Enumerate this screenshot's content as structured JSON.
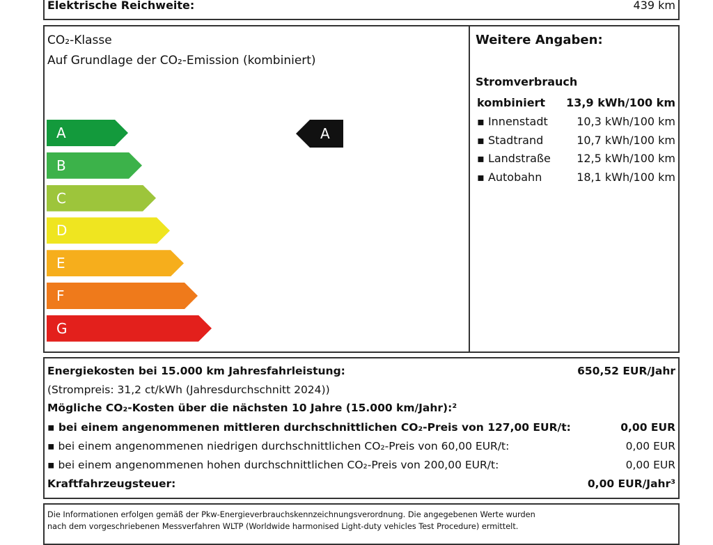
{
  "top": {
    "label": "Elektrische Reichweite:",
    "value": "439 km"
  },
  "co2": {
    "title": "CO₂-Klasse",
    "subtitle": "Auf Grundlage der CO₂-Emission (kombiniert)",
    "classes": [
      "A",
      "B",
      "C",
      "D",
      "E",
      "F",
      "G"
    ],
    "current": "A"
  },
  "weitere": {
    "title": "Weitere Angaben:",
    "heading": "Stromverbrauch",
    "rows": [
      [
        "kombiniert",
        "13,9 kWh/100 km"
      ],
      [
        "Innenstadt",
        "10,3 kWh/100 km"
      ],
      [
        "Stadtrand",
        "10,7 kWh/100 km"
      ],
      [
        "Landstraße",
        "12,5 kWh/100 km"
      ],
      [
        "Autobahn",
        "18,1 kWh/100 km"
      ]
    ]
  },
  "costs": {
    "rows": [
      [
        "Energiekosten bei 15.000 km Jahresfahrleistung:",
        "650,52 EUR/Jahr"
      ],
      [
        "(Strompreis: 31,2 ct/kWh (Jahresdurchschnitt 2024))"
      ],
      [
        "Mögliche CO₂-Kosten über die nächsten 10 Jahre (15.000 km/Jahr):²"
      ],
      [
        "bei einem angenommenen mittleren durchschnittlichen CO₂-Preis von 127,00 EUR/t:",
        "0,00 EUR"
      ],
      [
        "bei einem angenommenen niedrigen durchschnittlichen CO₂-Preis von 60,00 EUR/t:",
        "0,00 EUR"
      ],
      [
        "bei einem angenommenen hohen durchschnittlichen CO₂-Preis von 200,00 EUR/t:",
        "0,00 EUR"
      ],
      [
        "Kraftfahrzeugsteuer:",
        "0,00 EUR/Jahr³"
      ]
    ]
  },
  "footer": [
    "Die Informationen erfolgen gemäß der Pkw-Energieverbrauchskennzeichnungsverordnung. Die angegebenen Werte wurden",
    "nach dem vorgeschriebenen Messverfahren WLTP (Worldwide harmonised Light-duty vehicles Test Procedure) ermittelt."
  ]
}
